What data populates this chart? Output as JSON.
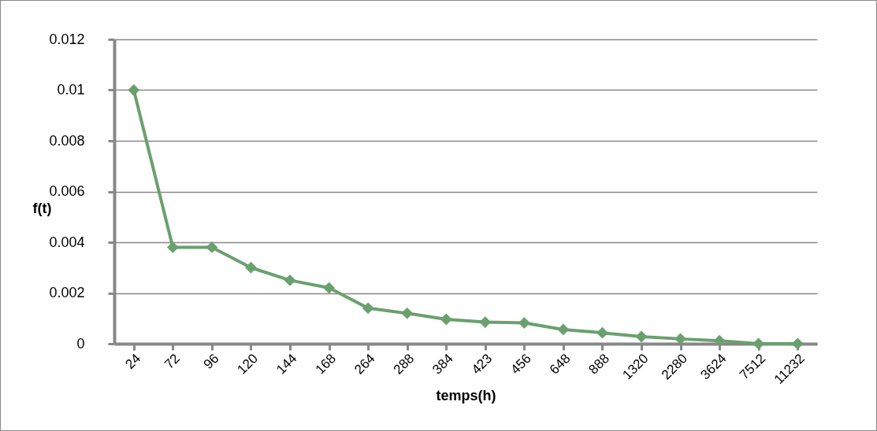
{
  "chart_data": {
    "type": "line",
    "xlabel": "temps(h)",
    "ylabel": "f(t)",
    "categories": [
      "24",
      "72",
      "96",
      "120",
      "144",
      "168",
      "264",
      "288",
      "384",
      "423",
      "456",
      "648",
      "888",
      "1320",
      "2280",
      "3624",
      "7512",
      "11232"
    ],
    "series": [
      {
        "color": "#6aa06e",
        "values": [
          0.01,
          0.0038,
          0.0038,
          0.003,
          0.0025,
          0.0022,
          0.0014,
          0.0012,
          0.00096,
          0.00085,
          0.00082,
          0.00056,
          0.00043,
          0.00028,
          0.00019,
          0.00012,
          0,
          0
        ]
      }
    ],
    "ylim": [
      0,
      0.012
    ],
    "yticks": [
      0,
      0.002,
      0.004,
      0.006,
      0.008,
      0.01,
      0.012
    ],
    "grid": "y",
    "marker": "diamond",
    "line_style": "solid",
    "legend": false
  }
}
